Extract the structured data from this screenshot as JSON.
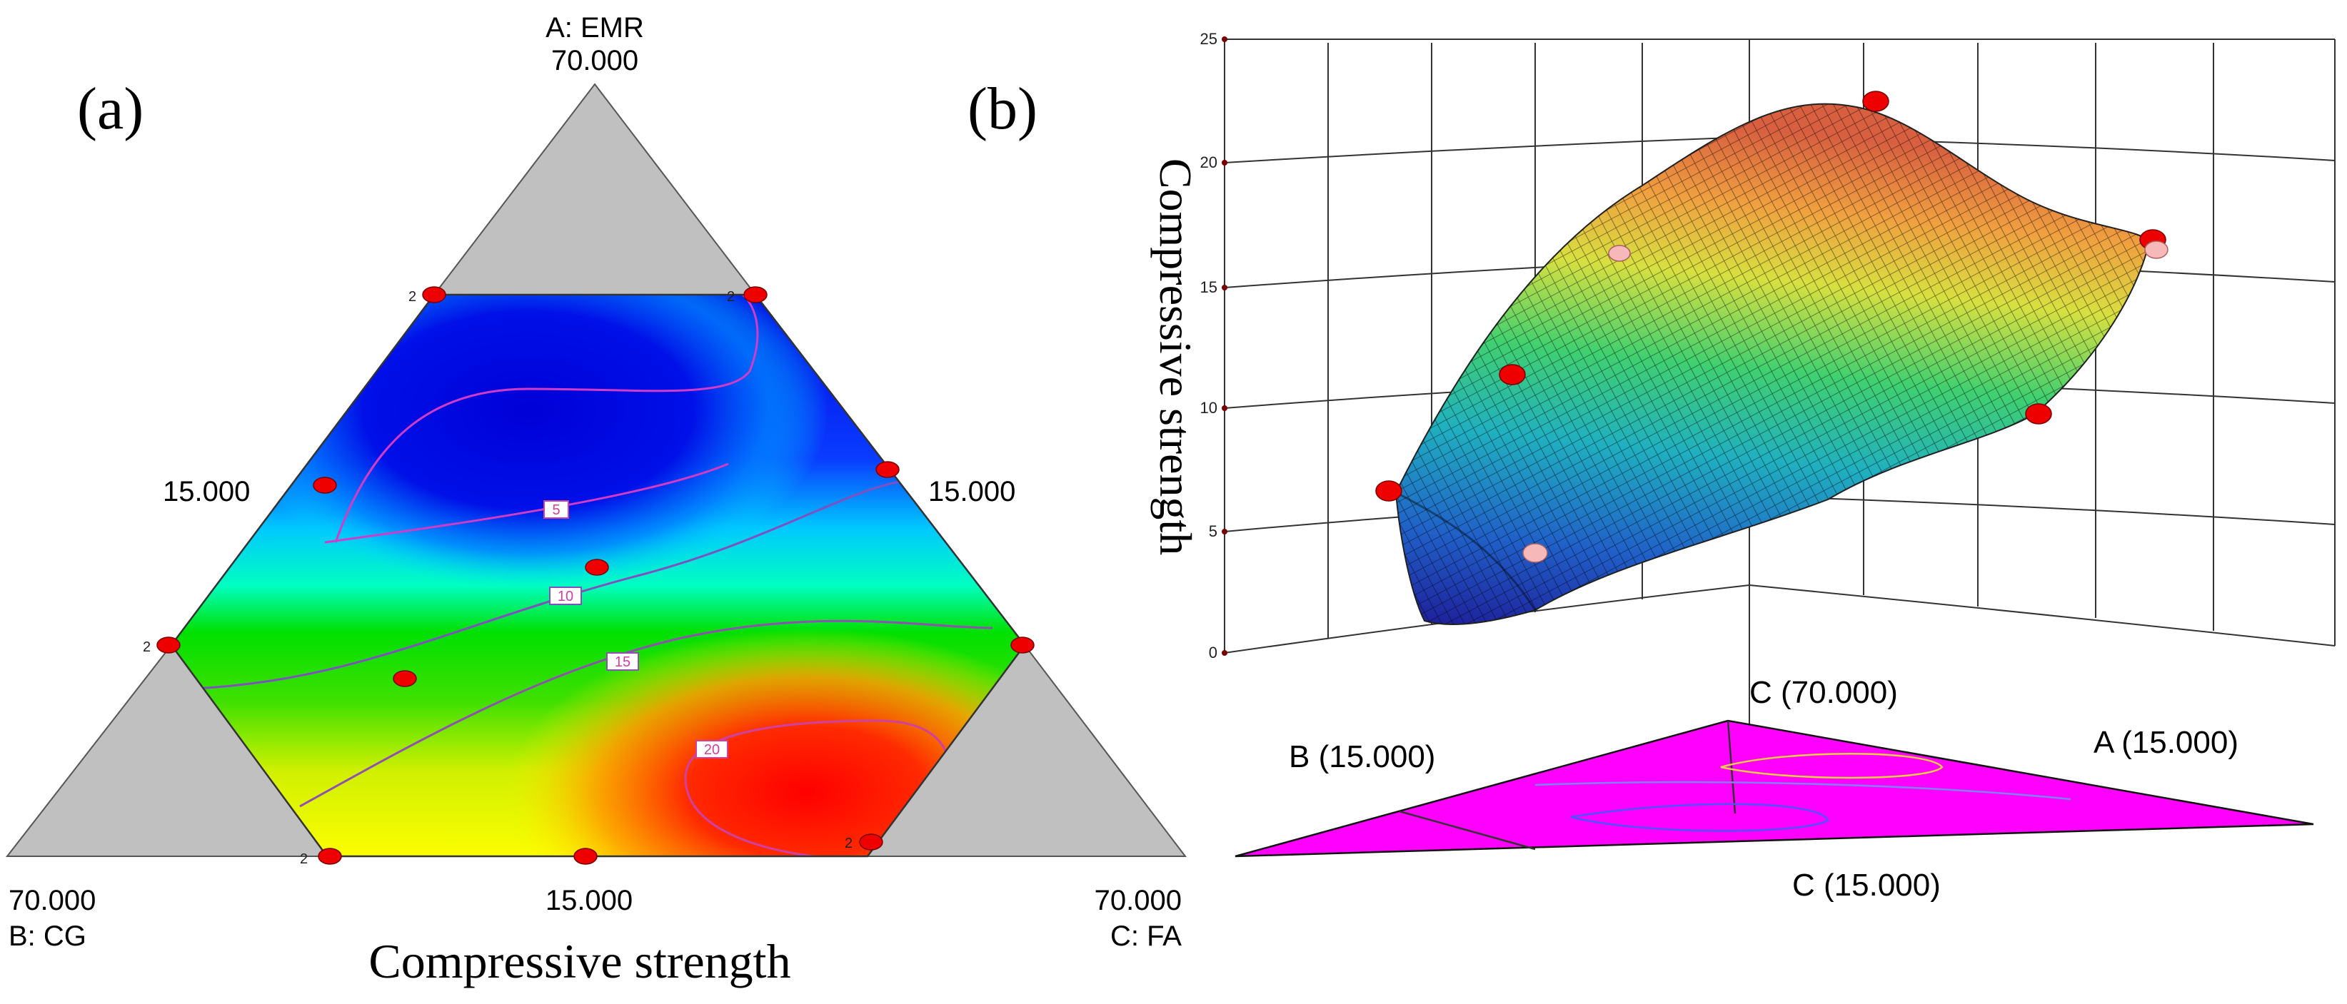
{
  "chart_data": [
    {
      "type": "ternary-contour",
      "panel_label": "(a)",
      "title": "Compressive strength",
      "vertices": {
        "top": {
          "label": "A: EMR",
          "value": "70.000"
        },
        "left": {
          "label": "B: CG",
          "value": "70.000"
        },
        "right": {
          "label": "C: FA",
          "value": "70.000"
        }
      },
      "edge_labels": {
        "left": "15.000",
        "right": "15.000",
        "bottom": "15.000"
      },
      "contours": [
        {
          "level": 5,
          "label": "5"
        },
        {
          "level": 10,
          "label": "10"
        },
        {
          "level": 15,
          "label": "15"
        },
        {
          "level": 20,
          "label": "20"
        }
      ],
      "replicate_marker": "2",
      "colormap": [
        "#0000e0",
        "#00e6ff",
        "#00e000",
        "#ffff00",
        "#ff0000"
      ]
    },
    {
      "type": "surface3d",
      "panel_label": "(b)",
      "zlabel": "Compressive strength",
      "zlim": [
        0,
        25
      ],
      "zticks": [
        "0",
        "5",
        "10",
        "15",
        "20",
        "25"
      ],
      "base_labels": {
        "c_top": "C (70.000)",
        "a": "A (15.000)",
        "b": "B (15.000)",
        "c_bottom": "C (15.000)"
      },
      "base_color": "#ff00ff"
    }
  ]
}
